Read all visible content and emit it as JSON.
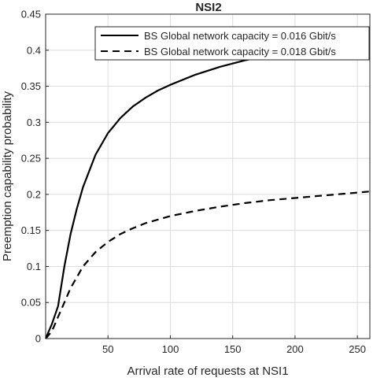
{
  "chart_data": {
    "type": "line",
    "title": "NSI2",
    "xlabel": "Arrival rate of requests at NSI1",
    "ylabel": "Preemption capability probability",
    "xlim": [
      0,
      260
    ],
    "ylim": [
      0,
      0.45
    ],
    "xticks": [
      50,
      100,
      150,
      200,
      250
    ],
    "yticks": [
      0,
      0.05,
      0.1,
      0.15,
      0.2,
      0.25,
      0.3,
      0.35,
      0.4,
      0.45
    ],
    "xtick_labels": [
      "50",
      "100",
      "150",
      "200",
      "250"
    ],
    "ytick_labels": [
      "0",
      "0.05",
      "0.1",
      "0.15",
      "0.2",
      "0.25",
      "0.3",
      "0.35",
      "0.4",
      "0.45"
    ],
    "grid": true,
    "legend_position": "top-right",
    "series": [
      {
        "name": "BS Global network capacity = 0.016 Gbit/s",
        "line_style": "solid",
        "color": "#000000",
        "x": [
          0,
          5,
          10,
          15,
          20,
          25,
          30,
          40,
          50,
          60,
          70,
          80,
          90,
          100,
          120,
          140,
          160,
          180,
          200,
          220,
          240,
          260
        ],
        "y": [
          0,
          0.02,
          0.045,
          0.1,
          0.145,
          0.18,
          0.21,
          0.255,
          0.285,
          0.306,
          0.322,
          0.334,
          0.344,
          0.352,
          0.366,
          0.377,
          0.386,
          0.393,
          0.4,
          0.405,
          0.41,
          0.415
        ]
      },
      {
        "name": "BS Global network capacity = 0.018 Gbit/s",
        "line_style": "dashed",
        "color": "#000000",
        "x": [
          0,
          5,
          10,
          15,
          20,
          25,
          30,
          40,
          50,
          60,
          70,
          80,
          90,
          100,
          120,
          140,
          160,
          180,
          200,
          220,
          240,
          260
        ],
        "y": [
          0,
          0.01,
          0.03,
          0.05,
          0.07,
          0.085,
          0.1,
          0.12,
          0.134,
          0.145,
          0.153,
          0.16,
          0.165,
          0.17,
          0.177,
          0.183,
          0.188,
          0.192,
          0.195,
          0.198,
          0.201,
          0.204
        ]
      }
    ]
  }
}
